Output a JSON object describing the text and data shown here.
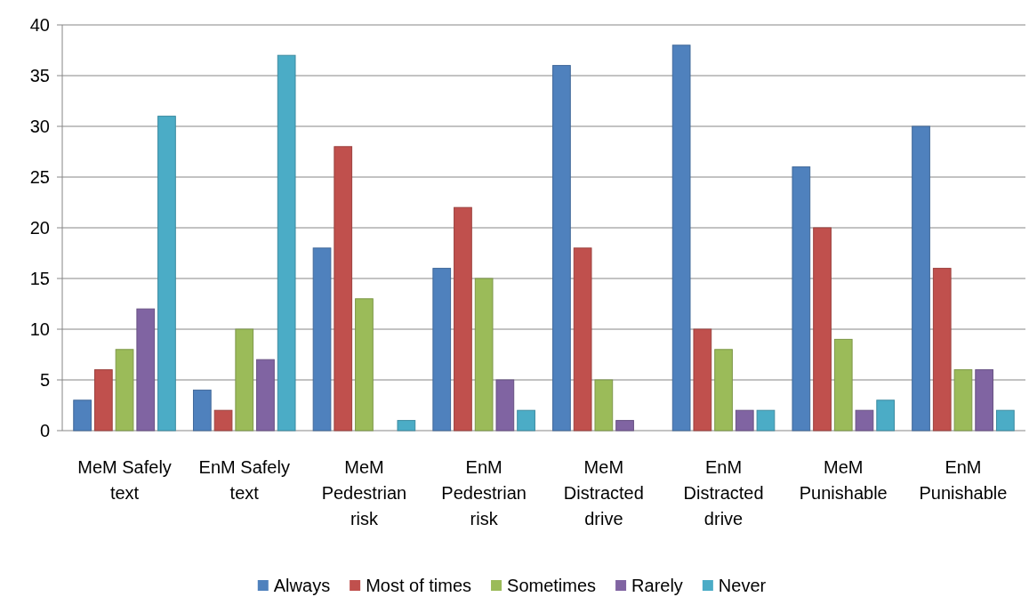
{
  "chart_data": {
    "type": "bar",
    "categories": [
      "MeM Safely text",
      "EnM Safely text",
      "MeM Pedestrian risk",
      "EnM Pedestrian risk",
      "MeM Distracted drive",
      "EnM Distracted drive",
      "MeM Punishable",
      "EnM Punishable"
    ],
    "series": [
      {
        "name": "Always",
        "color": "#4f81bd",
        "values": [
          3,
          4,
          18,
          16,
          36,
          38,
          26,
          30
        ]
      },
      {
        "name": "Most of times",
        "color": "#c0504d",
        "values": [
          6,
          2,
          28,
          22,
          18,
          10,
          20,
          16
        ]
      },
      {
        "name": "Sometimes",
        "color": "#9bbb59",
        "values": [
          8,
          10,
          13,
          15,
          5,
          8,
          9,
          6
        ]
      },
      {
        "name": "Rarely",
        "color": "#8064a2",
        "values": [
          12,
          7,
          0,
          5,
          1,
          2,
          2,
          6
        ]
      },
      {
        "name": "Never",
        "color": "#4bacc6",
        "values": [
          31,
          37,
          1,
          2,
          0,
          2,
          3,
          2
        ]
      }
    ],
    "ylim": [
      0,
      40
    ],
    "yticks": [
      0,
      5,
      10,
      15,
      20,
      25,
      30,
      35,
      40
    ],
    "grid": "y",
    "legend": "bottom"
  }
}
